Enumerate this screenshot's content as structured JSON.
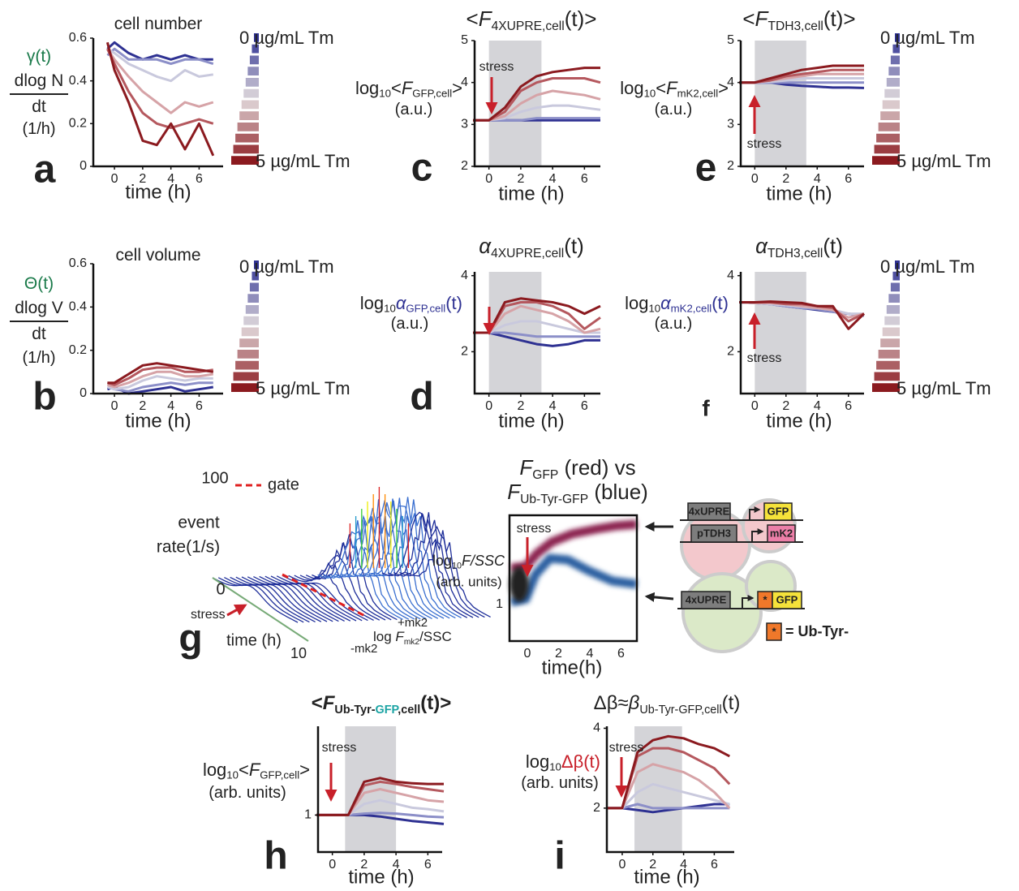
{
  "chart_data": [
    {
      "type": "line",
      "panel_label": "a",
      "title": [
        "cell number"
      ],
      "ylabel": [
        "γ(t)",
        "dlog N",
        "dt",
        "(1/h)"
      ],
      "xlabel": "time (h)",
      "legend": [
        "0 µg/mL Tm",
        "5 µg/mL Tm"
      ],
      "x": [
        -0.5,
        0,
        1,
        2,
        3,
        4,
        5,
        6,
        7
      ],
      "xlim": [
        -1.5,
        7.7
      ],
      "xticks": [
        0,
        2,
        4,
        6
      ],
      "ylim": [
        0,
        0.6
      ],
      "yticks": [
        0,
        0.2,
        0.4,
        0.6
      ],
      "series": [
        {
          "color": "#2e3192",
          "values": [
            0.55,
            0.58,
            0.53,
            0.5,
            0.52,
            0.5,
            0.52,
            0.5,
            0.5
          ]
        },
        {
          "color": "#8c8fc8",
          "values": [
            0.52,
            0.55,
            0.5,
            0.5,
            0.5,
            0.48,
            0.5,
            0.5,
            0.48
          ]
        },
        {
          "color": "#c9c9dd",
          "values": [
            0.55,
            0.53,
            0.48,
            0.45,
            0.42,
            0.4,
            0.45,
            0.42,
            0.43
          ]
        },
        {
          "color": "#d6a3a7",
          "values": [
            0.55,
            0.5,
            0.42,
            0.35,
            0.3,
            0.25,
            0.3,
            0.28,
            0.3
          ]
        },
        {
          "color": "#b5585e",
          "values": [
            0.55,
            0.48,
            0.35,
            0.25,
            0.2,
            0.18,
            0.2,
            0.22,
            0.2
          ]
        },
        {
          "color": "#8b1a1f",
          "values": [
            0.58,
            0.45,
            0.3,
            0.12,
            0.1,
            0.2,
            0.08,
            0.2,
            0.05
          ]
        }
      ]
    },
    {
      "type": "line",
      "panel_label": "b",
      "title": [
        "cell volume"
      ],
      "ylabel": [
        "Θ(t)",
        "dlog V",
        "dt",
        "(1/h)"
      ],
      "xlabel": "time (h)",
      "legend": [
        "0 µg/mL Tm",
        "5 µg/mL Tm"
      ],
      "x": [
        -0.5,
        0,
        1,
        2,
        3,
        4,
        5,
        6,
        7
      ],
      "xlim": [
        -1.5,
        7.7
      ],
      "xticks": [
        0,
        2,
        4,
        6
      ],
      "ylim": [
        0,
        0.6
      ],
      "yticks": [
        0,
        0.2,
        0.4,
        0.6
      ],
      "series": [
        {
          "color": "#2e3192",
          "values": [
            0.02,
            0.03,
            0,
            0.01,
            0.02,
            0.03,
            0.01,
            0.02,
            0.03
          ]
        },
        {
          "color": "#8c8fc8",
          "values": [
            0.03,
            0.02,
            0.01,
            0.03,
            0.04,
            0.05,
            0.04,
            0.05,
            0.05
          ]
        },
        {
          "color": "#c9c9dd",
          "values": [
            0.03,
            0.02,
            0.03,
            0.06,
            0.08,
            0.07,
            0.06,
            0.07,
            0.07
          ]
        },
        {
          "color": "#d6a3a7",
          "values": [
            0.04,
            0.03,
            0.05,
            0.08,
            0.1,
            0.1,
            0.08,
            0.08,
            0.09
          ]
        },
        {
          "color": "#b5585e",
          "values": [
            0.05,
            0.04,
            0.07,
            0.11,
            0.12,
            0.12,
            0.1,
            0.1,
            0.11
          ]
        },
        {
          "color": "#8b1a1f",
          "values": [
            0.05,
            0.05,
            0.09,
            0.13,
            0.14,
            0.13,
            0.12,
            0.11,
            0.1
          ]
        }
      ]
    },
    {
      "type": "line",
      "panel_label": "c",
      "title": [
        "<",
        "F",
        "4XUPRE,cell",
        "(t)>"
      ],
      "ylabel": [
        "log",
        "10",
        "<",
        "F",
        "GFP,cell",
        ">",
        "(a.u.)"
      ],
      "xlabel": "time (h)",
      "annotation": "stress",
      "shade": [
        0,
        3.3
      ],
      "x": [
        -1,
        0,
        1,
        2,
        3,
        4,
        5,
        6,
        7
      ],
      "xlim": [
        -0.9,
        7
      ],
      "xticks": [
        0,
        2,
        4,
        6
      ],
      "ylim": [
        2,
        5
      ],
      "yticks": [
        2,
        3,
        4,
        5
      ],
      "series": [
        {
          "color": "#2e3192",
          "values": [
            3.1,
            3.1,
            3.1,
            3.1,
            3.1,
            3.1,
            3.1,
            3.1,
            3.1
          ]
        },
        {
          "color": "#8c8fc8",
          "values": [
            3.1,
            3.1,
            3.1,
            3.1,
            3.15,
            3.15,
            3.15,
            3.15,
            3.15
          ]
        },
        {
          "color": "#c9c9dd",
          "values": [
            3.1,
            3.1,
            3.15,
            3.3,
            3.4,
            3.45,
            3.45,
            3.4,
            3.35
          ]
        },
        {
          "color": "#d6a3a7",
          "values": [
            3.1,
            3.1,
            3.2,
            3.5,
            3.7,
            3.8,
            3.75,
            3.7,
            3.6
          ]
        },
        {
          "color": "#b5585e",
          "values": [
            3.1,
            3.1,
            3.3,
            3.8,
            4.0,
            4.1,
            4.1,
            4.1,
            4.0
          ]
        },
        {
          "color": "#8b1a1f",
          "values": [
            3.1,
            3.1,
            3.4,
            3.9,
            4.15,
            4.25,
            4.3,
            4.35,
            4.35
          ]
        }
      ]
    },
    {
      "type": "line",
      "panel_label": "d",
      "title": [
        "α",
        "4XUPRE,cell",
        "(t)"
      ],
      "ylabel": [
        "log",
        "10",
        "α",
        "GFP,cell",
        "(t)",
        "(a.u.)"
      ],
      "xlabel": "time (h)",
      "shade": [
        0,
        3.3
      ],
      "x": [
        -1,
        0,
        1,
        2,
        3,
        4,
        5,
        6,
        7
      ],
      "xlim": [
        -0.9,
        7
      ],
      "xticks": [
        0,
        2,
        4,
        6
      ],
      "ylim": [
        0.9,
        4.1
      ],
      "yticks": [
        2,
        4
      ],
      "series": [
        {
          "color": "#2e3192",
          "values": [
            2.5,
            2.5,
            2.4,
            2.3,
            2.2,
            2.15,
            2.2,
            2.3,
            2.3
          ]
        },
        {
          "color": "#8c8fc8",
          "values": [
            2.5,
            2.5,
            2.5,
            2.45,
            2.4,
            2.4,
            2.4,
            2.4,
            2.4
          ]
        },
        {
          "color": "#c9c9dd",
          "values": [
            2.5,
            2.5,
            2.7,
            2.8,
            2.8,
            2.7,
            2.6,
            2.5,
            2.5
          ]
        },
        {
          "color": "#d6a3a7",
          "values": [
            2.5,
            2.5,
            3.0,
            3.2,
            3.1,
            3.0,
            2.8,
            2.5,
            2.6
          ]
        },
        {
          "color": "#b5585e",
          "values": [
            2.5,
            2.5,
            3.2,
            3.3,
            3.3,
            3.2,
            3.0,
            2.6,
            2.9
          ]
        },
        {
          "color": "#8b1a1f",
          "values": [
            2.5,
            2.5,
            3.3,
            3.4,
            3.35,
            3.3,
            3.2,
            3.0,
            3.2
          ]
        }
      ]
    },
    {
      "type": "line",
      "panel_label": "e",
      "title": [
        "<",
        "F",
        "TDH3,cell",
        "(t)>"
      ],
      "ylabel": [
        "log",
        "10",
        "<",
        "F",
        "mK2,cell",
        ">",
        "(a.u.)"
      ],
      "xlabel": "time (h)",
      "annotation": "stress",
      "legend": [
        "0 µg/mL Tm",
        "5 µg/mL Tm"
      ],
      "shade": [
        0,
        3.3
      ],
      "x": [
        -1,
        0,
        1,
        2,
        3,
        4,
        5,
        6,
        7
      ],
      "xlim": [
        -0.9,
        7
      ],
      "xticks": [
        0,
        2,
        4,
        6
      ],
      "ylim": [
        2,
        5
      ],
      "yticks": [
        2,
        3,
        4,
        5
      ],
      "series": [
        {
          "color": "#2e3192",
          "values": [
            4,
            4,
            4,
            3.95,
            3.92,
            3.9,
            3.88,
            3.88,
            3.87
          ]
        },
        {
          "color": "#8c8fc8",
          "values": [
            4,
            4,
            4,
            4,
            4,
            4,
            4,
            4,
            4
          ]
        },
        {
          "color": "#c9c9dd",
          "values": [
            4,
            4,
            4.02,
            4.05,
            4.1,
            4.1,
            4.1,
            4.1,
            4.1
          ]
        },
        {
          "color": "#d6a3a7",
          "values": [
            4,
            4,
            4.05,
            4.1,
            4.15,
            4.2,
            4.2,
            4.2,
            4.2
          ]
        },
        {
          "color": "#b5585e",
          "values": [
            4,
            4,
            4.05,
            4.15,
            4.2,
            4.25,
            4.3,
            4.3,
            4.3
          ]
        },
        {
          "color": "#8b1a1f",
          "values": [
            4,
            4,
            4.1,
            4.2,
            4.3,
            4.35,
            4.4,
            4.4,
            4.4
          ]
        }
      ]
    },
    {
      "type": "line",
      "panel_label": "f",
      "title": [
        "α",
        "TDH3,cell",
        "(t)"
      ],
      "ylabel": [
        "log",
        "10",
        "α",
        "mK2,cell",
        "(t)",
        "(a.u.)"
      ],
      "xlabel": "time (h)",
      "annotation": "stress",
      "legend": [
        "0 µg/mL Tm",
        "5 µg/mL Tm"
      ],
      "shade": [
        0,
        3.3
      ],
      "x": [
        -1,
        0,
        1,
        2,
        3,
        4,
        5,
        6,
        7
      ],
      "xlim": [
        -0.9,
        7
      ],
      "xticks": [
        0,
        2,
        4,
        6
      ],
      "ylim": [
        0.9,
        4.1
      ],
      "yticks": [
        2,
        4
      ],
      "series": [
        {
          "color": "#2e3192",
          "values": [
            3.3,
            3.28,
            3.25,
            3.2,
            3.15,
            3.1,
            3.05,
            3.0,
            2.95
          ]
        },
        {
          "color": "#8c8fc8",
          "values": [
            3.3,
            3.28,
            3.25,
            3.2,
            3.15,
            3.12,
            3.05,
            3.0,
            2.95
          ]
        },
        {
          "color": "#c9c9dd",
          "values": [
            3.3,
            3.28,
            3.25,
            3.22,
            3.18,
            3.15,
            3.1,
            3.0,
            3.0
          ]
        },
        {
          "color": "#d6a3a7",
          "values": [
            3.3,
            3.28,
            3.28,
            3.25,
            3.2,
            3.15,
            3.1,
            2.9,
            3.0
          ]
        },
        {
          "color": "#b5585e",
          "values": [
            3.3,
            3.3,
            3.3,
            3.25,
            3.25,
            3.2,
            3.15,
            2.8,
            3.0
          ]
        },
        {
          "color": "#8b1a1f",
          "values": [
            3.3,
            3.3,
            3.32,
            3.3,
            3.28,
            3.2,
            3.2,
            2.6,
            3.0
          ]
        }
      ]
    },
    {
      "type": "line",
      "panel_label": "h",
      "title": [
        "<",
        "F",
        "Ub-Tyr-",
        "GFP",
        ",cell",
        "(t)>"
      ],
      "ylabel": [
        "log",
        "10",
        "<",
        "F",
        "GFP,cell",
        ">",
        "(arb. units)"
      ],
      "xlabel": "time (h)",
      "annotation": "stress",
      "shade": [
        0.8,
        4
      ],
      "x": [
        -1,
        0,
        1,
        2,
        3,
        4,
        5,
        6,
        7
      ],
      "xlim": [
        -0.9,
        6.9
      ],
      "xticks": [
        0,
        2,
        4,
        6
      ],
      "ylim": [
        0.5,
        2.2
      ],
      "yticks": [
        1
      ],
      "series": [
        {
          "color": "#2e3192",
          "values": [
            1,
            1,
            1,
            1,
            0.98,
            0.95,
            0.92,
            0.9,
            0.88
          ]
        },
        {
          "color": "#8c8fc8",
          "values": [
            1,
            1,
            1,
            1.02,
            1.03,
            1.02,
            1,
            0.98,
            0.97
          ]
        },
        {
          "color": "#c9c9dd",
          "values": [
            1,
            1,
            1,
            1.15,
            1.2,
            1.15,
            1.1,
            1.08,
            1.05
          ]
        },
        {
          "color": "#d6a3a7",
          "values": [
            1,
            1,
            1,
            1.3,
            1.35,
            1.3,
            1.25,
            1.2,
            1.18
          ]
        },
        {
          "color": "#b5585e",
          "values": [
            1,
            1,
            1,
            1.4,
            1.45,
            1.42,
            1.38,
            1.35,
            1.32
          ]
        },
        {
          "color": "#8b1a1f",
          "values": [
            1,
            1,
            1,
            1.45,
            1.5,
            1.45,
            1.43,
            1.42,
            1.42
          ]
        }
      ]
    },
    {
      "type": "line",
      "panel_label": "i",
      "title": [
        "Δβ≈",
        "β",
        "Ub-Tyr-GFP,cell",
        "(t)"
      ],
      "ylabel": [
        "log",
        "10",
        "Δβ(t)",
        "(arb. units)"
      ],
      "xlabel": "time (h)",
      "annotation": "stress",
      "shade": [
        0.8,
        3.9
      ],
      "x": [
        -1,
        0,
        1,
        2,
        3,
        4,
        5,
        6,
        7
      ],
      "xlim": [
        -1,
        7.3
      ],
      "xticks": [
        0,
        2,
        4,
        6
      ],
      "ylim": [
        0.9,
        4.05
      ],
      "yticks": [
        2,
        4
      ],
      "series": [
        {
          "color": "#2e3192",
          "values": [
            2,
            2,
            1.95,
            1.9,
            1.95,
            2.0,
            2.05,
            2.1,
            2.1
          ]
        },
        {
          "color": "#8c8fc8",
          "values": [
            2,
            2,
            2.1,
            2.0,
            2.0,
            2.0,
            2.0,
            2.0,
            2.0
          ]
        },
        {
          "color": "#c9c9dd",
          "values": [
            2,
            2,
            2.4,
            2.6,
            2.5,
            2.4,
            2.3,
            2.2,
            2.1
          ]
        },
        {
          "color": "#d6a3a7",
          "values": [
            2,
            2,
            2.9,
            3.1,
            3.0,
            2.9,
            2.7,
            2.4,
            2.0
          ]
        },
        {
          "color": "#b5585e",
          "values": [
            2,
            2,
            3.3,
            3.5,
            3.5,
            3.4,
            3.2,
            3.0,
            2.6
          ]
        },
        {
          "color": "#8b1a1f",
          "values": [
            2,
            2,
            3.4,
            3.7,
            3.8,
            3.75,
            3.6,
            3.5,
            3.3
          ]
        }
      ]
    }
  ],
  "panel_g": {
    "panel_label": "g",
    "ytick_top": "100",
    "ytick_bottom": "0",
    "ylabel": [
      "event",
      "rate(1/s)"
    ],
    "gate": "gate",
    "annotation": "stress",
    "xlabel": "time (h)",
    "time_tick": "10",
    "plus": "+mk2",
    "minus": "-mk2",
    "zlabel": [
      "log ",
      "F",
      "mk2",
      "/SSC"
    ]
  },
  "panel_heatmap": {
    "title": [
      "F",
      "GFP",
      " (red) vs",
      "F",
      "Ub-Tyr-GFP",
      " (blue)"
    ],
    "ylabel": [
      "log",
      "10",
      "F/SSC",
      "(arb. units)"
    ],
    "annotation": "stress",
    "xlabel": "time(h)",
    "xticks": [
      "0",
      "2",
      "4",
      "6"
    ],
    "ytick": "1"
  },
  "diagram": {
    "cell1": [
      "4xUPRE",
      "GFP",
      "pTDH3",
      "mK2"
    ],
    "cell2": [
      "4xUPRE",
      "*",
      "GFP"
    ],
    "key": [
      "*",
      "= Ub-Tyr-"
    ]
  }
}
